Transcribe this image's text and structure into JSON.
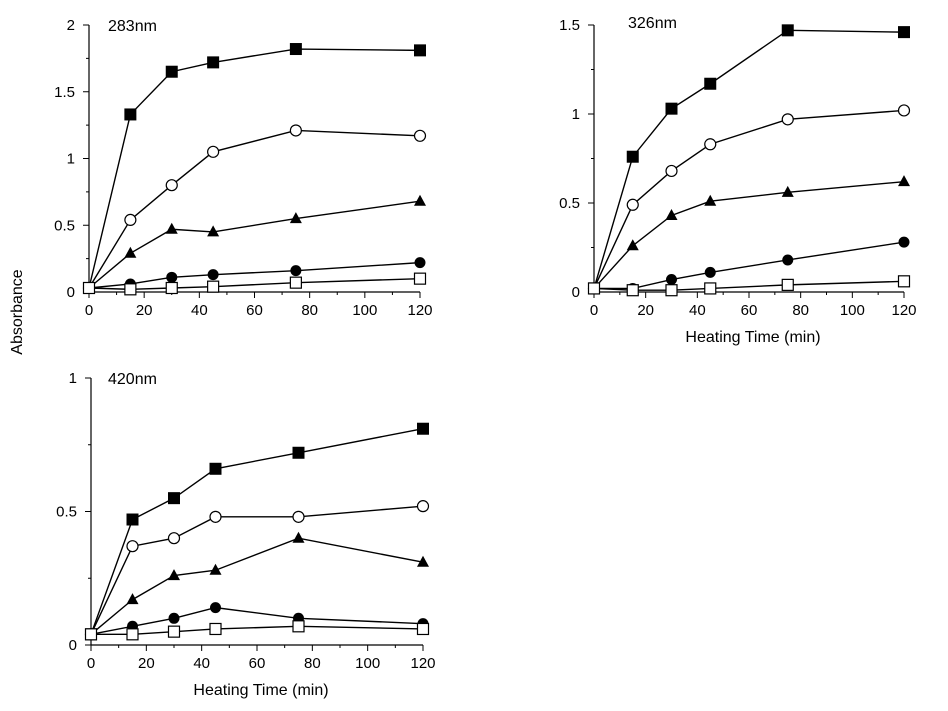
{
  "chart_data": [
    {
      "type": "line",
      "title": "283nm",
      "xlabel": "",
      "ylabel": "Absorbance",
      "xlim": [
        0,
        120
      ],
      "ylim": [
        0,
        2
      ],
      "xticks": [
        0,
        20,
        40,
        60,
        80,
        100,
        120
      ],
      "yticks": [
        "0",
        "0.5",
        "1",
        "1.5",
        "2"
      ],
      "yticks_values": [
        0,
        0.5,
        1,
        1.5,
        2
      ],
      "x": [
        0,
        15,
        30,
        45,
        75,
        120
      ],
      "grid": false,
      "series": [
        {
          "marker": "square-filled",
          "values": [
            0.03,
            1.33,
            1.65,
            1.72,
            1.82,
            1.81
          ]
        },
        {
          "marker": "circle-open",
          "values": [
            0.03,
            0.54,
            0.8,
            1.05,
            1.21,
            1.17
          ]
        },
        {
          "marker": "triangle-filled",
          "values": [
            0.03,
            0.29,
            0.47,
            0.45,
            0.55,
            0.68
          ]
        },
        {
          "marker": "circle-filled",
          "values": [
            0.03,
            0.06,
            0.11,
            0.13,
            0.16,
            0.22
          ]
        },
        {
          "marker": "square-open",
          "values": [
            0.03,
            0.02,
            0.03,
            0.04,
            0.07,
            0.1
          ]
        }
      ]
    },
    {
      "type": "line",
      "title": "326nm",
      "xlabel": "Heating Time (min)",
      "ylabel": "",
      "xlim": [
        0,
        120
      ],
      "ylim": [
        0,
        1.5
      ],
      "xticks": [
        0,
        20,
        40,
        60,
        80,
        100,
        120
      ],
      "yticks": [
        "0",
        "0.5",
        "1",
        "1.5"
      ],
      "yticks_values": [
        0,
        0.5,
        1,
        1.5
      ],
      "x": [
        0,
        15,
        30,
        45,
        75,
        120
      ],
      "grid": false,
      "series": [
        {
          "marker": "square-filled",
          "values": [
            0.02,
            0.76,
            1.03,
            1.17,
            1.47,
            1.46
          ]
        },
        {
          "marker": "circle-open",
          "values": [
            0.02,
            0.49,
            0.68,
            0.83,
            0.97,
            1.02
          ]
        },
        {
          "marker": "triangle-filled",
          "values": [
            0.02,
            0.26,
            0.43,
            0.51,
            0.56,
            0.62
          ]
        },
        {
          "marker": "circle-filled",
          "values": [
            0.02,
            0.02,
            0.07,
            0.11,
            0.18,
            0.28
          ]
        },
        {
          "marker": "square-open",
          "values": [
            0.02,
            0.01,
            0.01,
            0.02,
            0.04,
            0.06
          ]
        }
      ]
    },
    {
      "type": "line",
      "title": "420nm",
      "xlabel": "Heating Time (min)",
      "ylabel": "",
      "xlim": [
        0,
        120
      ],
      "ylim": [
        0,
        1
      ],
      "xticks": [
        0,
        20,
        40,
        60,
        80,
        100,
        120
      ],
      "yticks": [
        "0",
        "0.5",
        "1"
      ],
      "yticks_values": [
        0,
        0.5,
        1
      ],
      "x": [
        0,
        15,
        30,
        45,
        75,
        120
      ],
      "grid": false,
      "series": [
        {
          "marker": "square-filled",
          "values": [
            0.04,
            0.47,
            0.55,
            0.66,
            0.72,
            0.81
          ]
        },
        {
          "marker": "circle-open",
          "values": [
            0.04,
            0.37,
            0.4,
            0.48,
            0.48,
            0.52
          ]
        },
        {
          "marker": "triangle-filled",
          "values": [
            0.04,
            0.17,
            0.26,
            0.28,
            0.4,
            0.31
          ]
        },
        {
          "marker": "circle-filled",
          "values": [
            0.04,
            0.07,
            0.1,
            0.14,
            0.1,
            0.08
          ]
        },
        {
          "marker": "square-open",
          "values": [
            0.04,
            0.04,
            0.05,
            0.06,
            0.07,
            0.06
          ]
        }
      ]
    }
  ]
}
